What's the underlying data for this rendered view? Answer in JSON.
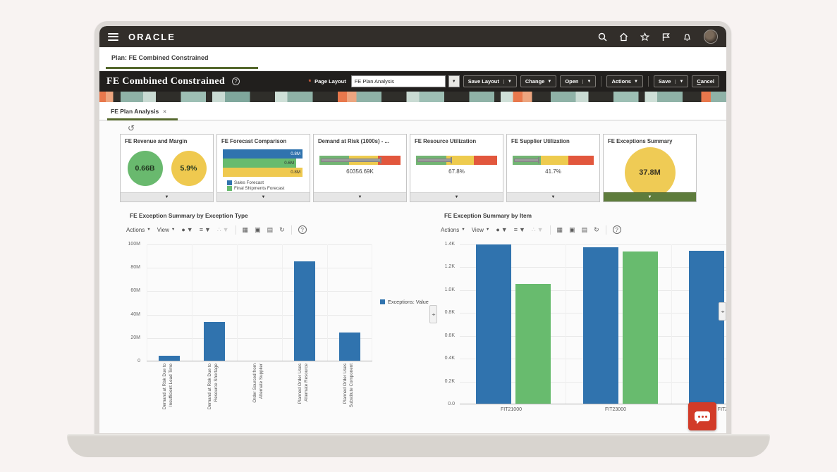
{
  "topbar": {
    "brand": "ORACLE"
  },
  "plan_tab": {
    "label": "Plan: FE Combined Constrained"
  },
  "plan_header": {
    "title": "FE Combined Constrained",
    "help": "?",
    "required_marker": "*",
    "page_layout_label": "Page Layout",
    "page_layout_value": "FE Plan Analysis",
    "save_layout": "Save Layout",
    "change": "Change",
    "open": "Open",
    "actions": "Actions",
    "save": "Save",
    "cancel": "Cancel"
  },
  "page_tab": {
    "label": "FE Plan Analysis",
    "close": "×"
  },
  "tiles": [
    {
      "title": "FE Revenue and Margin",
      "circles": [
        {
          "value": "0.66B",
          "color": "#69b96e"
        },
        {
          "value": "5.9%",
          "color": "#efc94f"
        }
      ]
    },
    {
      "title": "FE Forecast Comparison",
      "bars": [
        {
          "value": "0.8M",
          "color": "#3073ae"
        },
        {
          "value": "0.6M",
          "color": "#68bb6e"
        },
        {
          "value": "0.8M",
          "color": "#efc94f"
        }
      ],
      "legend": [
        {
          "label": "Sales Forecast",
          "color": "#3073ae"
        },
        {
          "label": "Final Shipments Forecast",
          "color": "#68bb6e"
        }
      ]
    },
    {
      "title": "Demand at Risk (1000s) - ...",
      "value": "60356.69K",
      "indicator_pct": 74
    },
    {
      "title": "FE Resource Utilization",
      "value": "67.8%",
      "indicator_pct": 42
    },
    {
      "title": "FE Supplier Utilization",
      "value": "41.7%",
      "indicator_pct": 31
    },
    {
      "title": "FE Exceptions Summary",
      "value": "37.8M"
    }
  ],
  "gauge_colors": [
    "#72b573",
    "#eecb4e",
    "#e2573d"
  ],
  "chart_toolbar": {
    "actions": "Actions",
    "view": "View"
  },
  "chart_data": [
    {
      "type": "bar",
      "title": "FE Exception Summary by Exception Type",
      "categories": [
        "Demand at Risk Due to Insufficient Lead Time",
        "Demand at Risk Due to Resource Shortage",
        "Order Sourced from Alternate Supplier",
        "Planned Order Uses Alternate Resource",
        "Planned Order Uses Substitute Component"
      ],
      "values": [
        4000000,
        33000000,
        0,
        85000000,
        24000000
      ],
      "ylim": [
        0,
        100000000
      ],
      "yticks": [
        "0",
        "20M",
        "40M",
        "60M",
        "80M",
        "100M"
      ],
      "legend": [
        "Exceptions: Value"
      ],
      "legend_position": "right",
      "bar_color": "#3073ae",
      "grid": true
    },
    {
      "type": "bar",
      "title": "FE Exception Summary by Item",
      "categories": [
        "FIT21000",
        "FIT23000",
        "FIT2"
      ],
      "series": [
        {
          "name": "series-blue",
          "color": "#3073ae",
          "values": [
            1400,
            1370,
            1340
          ]
        },
        {
          "name": "series-green",
          "color": "#68bb6e",
          "values": [
            1050,
            1330,
            null
          ]
        }
      ],
      "ylim": [
        0,
        1400
      ],
      "yticks": [
        "0.0",
        "0.2K",
        "0.4K",
        "0.6K",
        "0.8K",
        "1.0K",
        "1.2K",
        "1.4K"
      ],
      "grid": true
    }
  ],
  "colors": {
    "topbar_bg": "#322e2a",
    "header_bg": "#211f1d",
    "active_tab_underline": "#55682d",
    "tile_footer_green": "#5e7c3c",
    "fab_red": "#d23b28",
    "bar_blue": "#3073ae",
    "bar_green": "#68bb6e"
  }
}
